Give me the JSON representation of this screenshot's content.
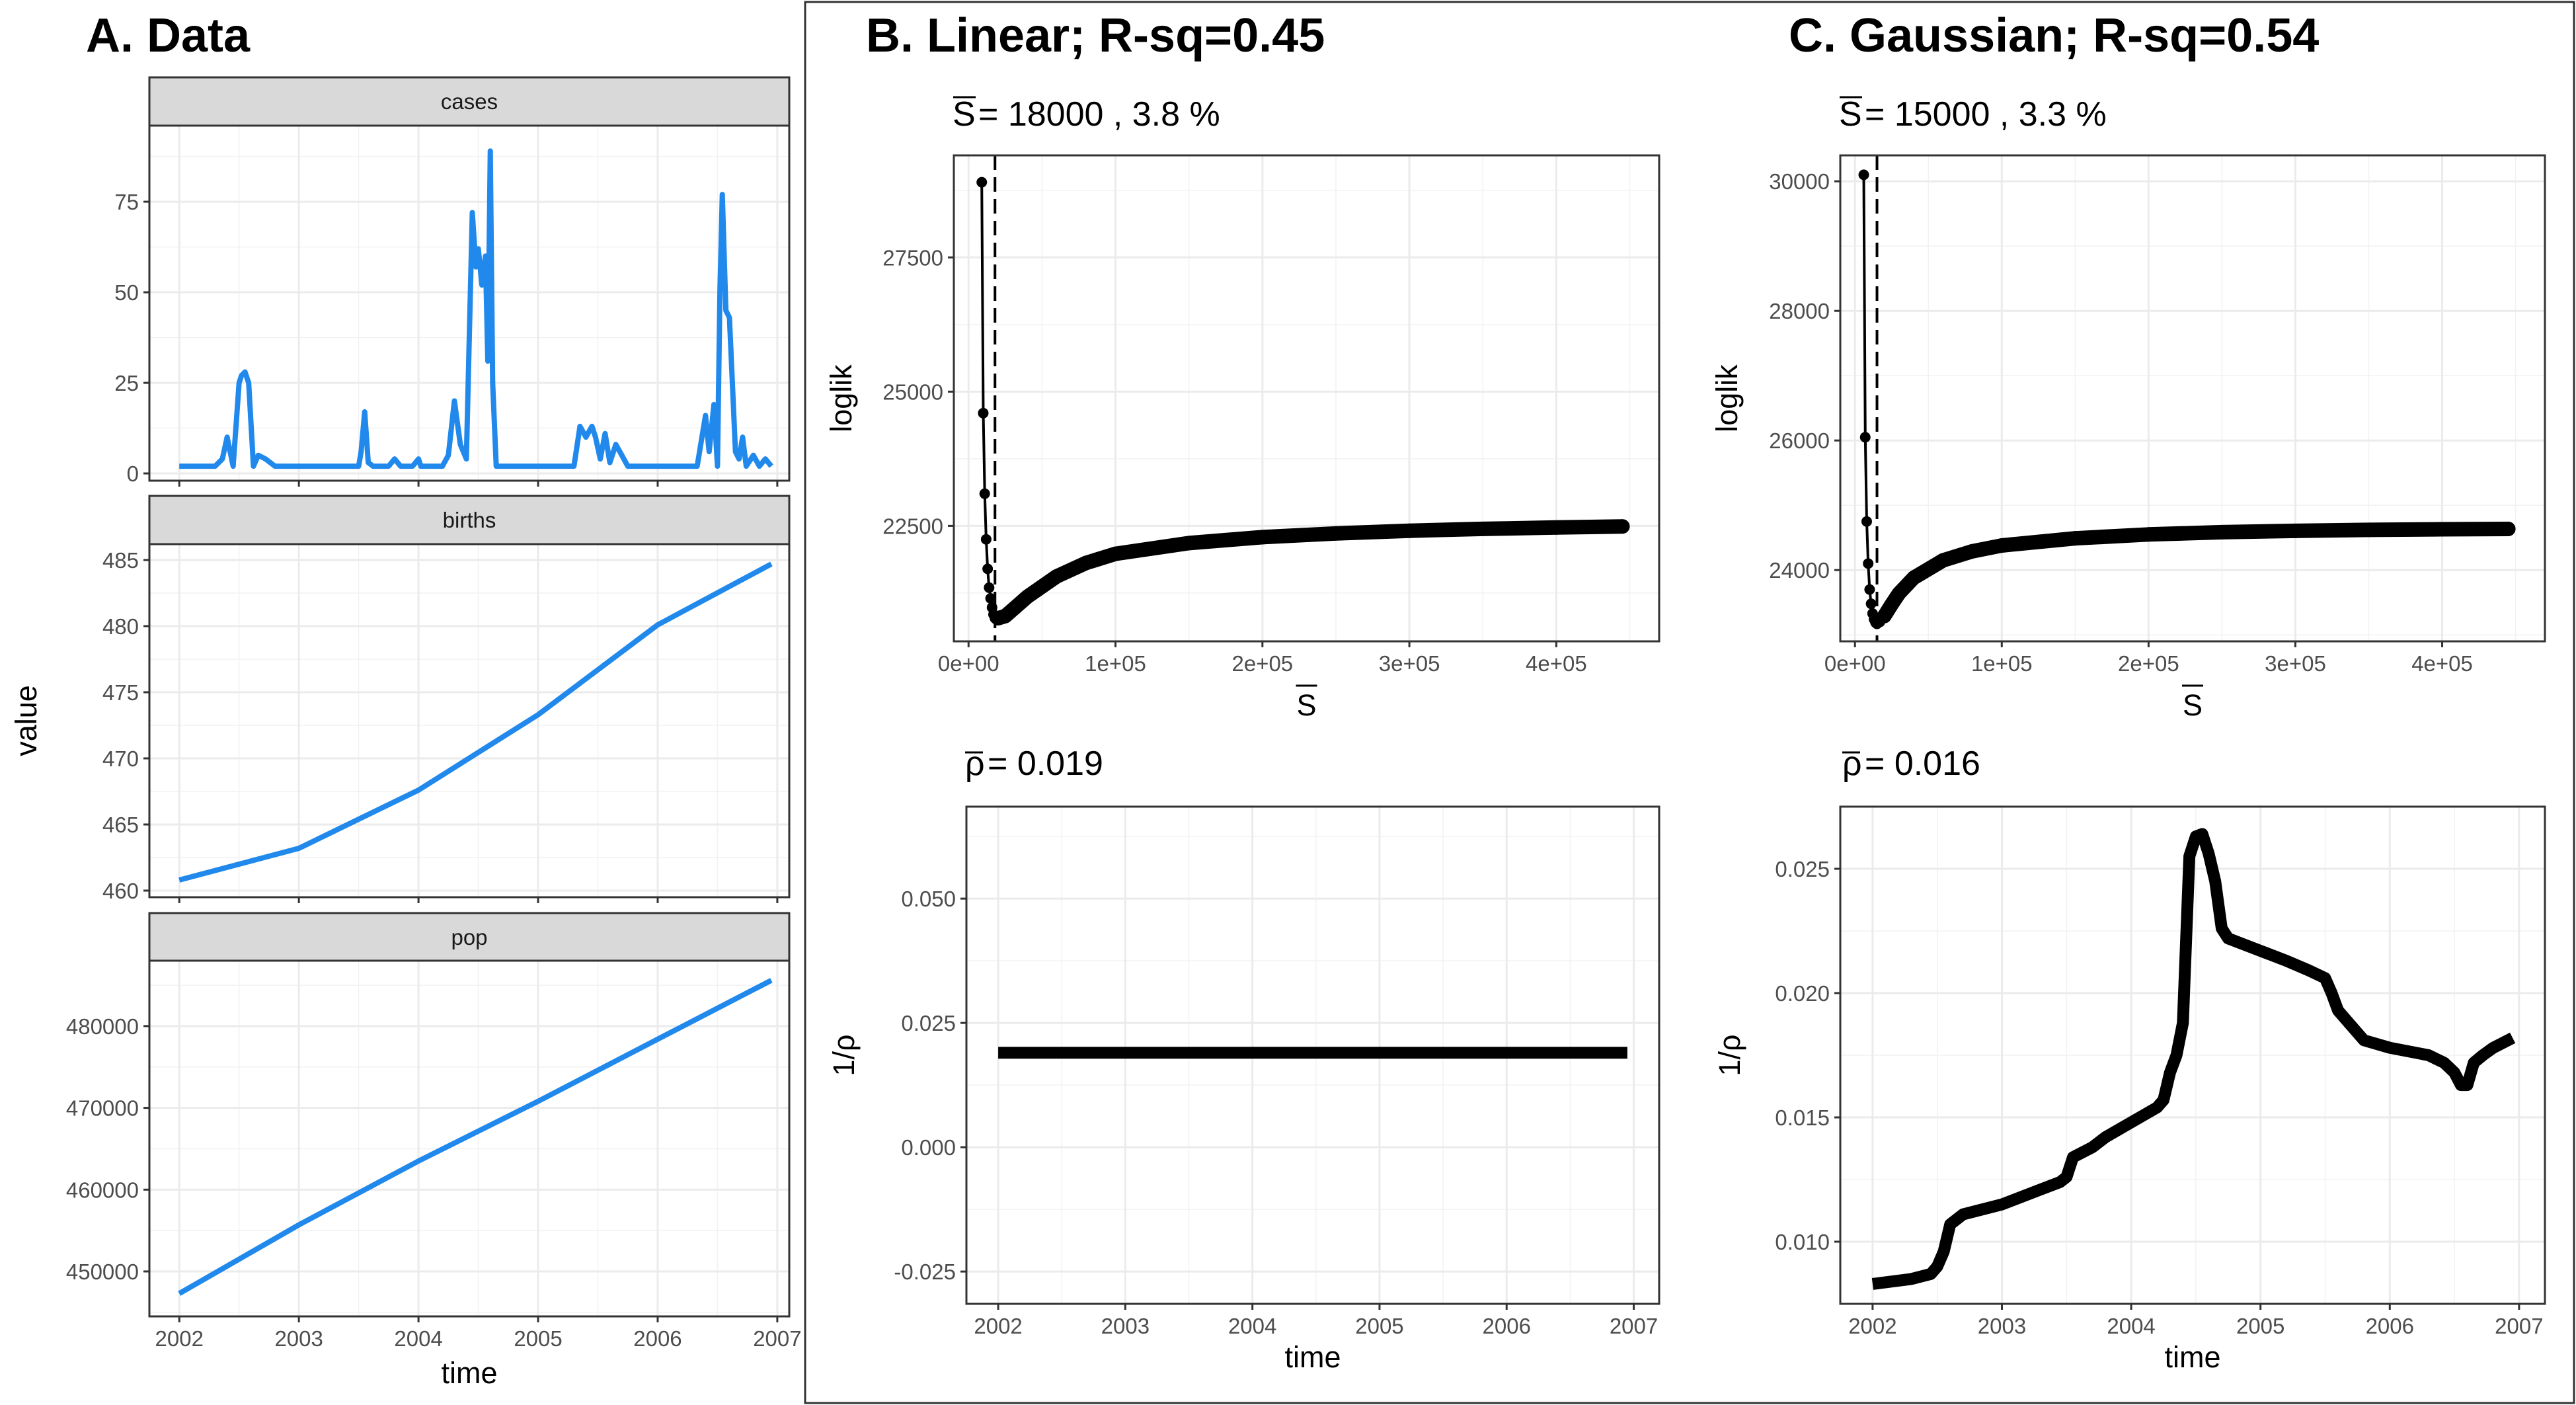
{
  "panels": {
    "a_title": "A. Data",
    "b_title": "B. Linear; R-sq=0.45",
    "c_title": "C. Gaussian; R-sq=0.54",
    "b_sbar": "= 18000 , 3.8 %",
    "c_sbar": "= 15000 , 3.3 %",
    "b_rho": "= 0.019",
    "c_rho": "= 0.016",
    "s_symbol": "S",
    "rho_symbol": "ρ"
  },
  "chart_data": [
    {
      "type": "line",
      "title": "A. Data",
      "ylabel": "value",
      "xlabel": "time",
      "x_ticks": [
        "2002",
        "2003",
        "2004",
        "2005",
        "2006",
        "2007"
      ],
      "xlim": [
        2001.75,
        2007.1
      ],
      "grid": true,
      "color": "#2189ec",
      "facets": [
        {
          "name": "cases",
          "ylim": [
            -2,
            96
          ],
          "y_ticks": [
            0,
            25,
            50,
            75
          ],
          "x": [
            2002.0,
            2002.3,
            2002.36,
            2002.4,
            2002.45,
            2002.5,
            2002.52,
            2002.55,
            2002.58,
            2002.62,
            2002.66,
            2002.72,
            2002.8,
            2003.5,
            2003.52,
            2003.55,
            2003.58,
            2003.62,
            2003.75,
            2003.8,
            2003.85,
            2003.95,
            2004.0,
            2004.02,
            2004.05,
            2004.2,
            2004.25,
            2004.3,
            2004.35,
            2004.4,
            2004.45,
            2004.48,
            2004.5,
            2004.53,
            2004.56,
            2004.58,
            2004.6,
            2004.62,
            2004.65,
            2004.7,
            2004.72,
            2005.3,
            2005.35,
            2005.4,
            2005.45,
            2005.48,
            2005.52,
            2005.56,
            2005.6,
            2005.65,
            2005.7,
            2005.75,
            2005.8,
            2006.3,
            2006.33,
            2006.36,
            2006.4,
            2006.43,
            2006.47,
            2006.5,
            2006.52,
            2006.54,
            2006.57,
            2006.6,
            2006.65,
            2006.68,
            2006.71,
            2006.74,
            2006.8,
            2006.85,
            2006.9,
            2006.95
          ],
          "y": [
            2,
            2,
            4,
            10,
            2,
            25,
            27,
            28,
            25,
            2,
            5,
            4,
            2,
            2,
            6,
            17,
            3,
            2,
            2,
            4,
            2,
            2,
            4,
            2,
            2,
            2,
            5,
            20,
            8,
            4,
            72,
            57,
            62,
            52,
            60,
            31,
            89,
            25,
            2,
            2,
            2,
            2,
            13,
            10,
            13,
            10,
            4,
            11,
            3,
            8,
            5,
            2,
            2,
            2,
            2,
            8,
            16,
            6,
            19,
            2,
            50,
            77,
            45,
            43,
            6,
            4,
            10,
            2,
            5,
            2,
            4,
            2
          ]
        },
        {
          "name": "births",
          "ylim": [
            459.5,
            486.2
          ],
          "y_ticks": [
            460,
            465,
            470,
            475,
            480,
            485
          ],
          "x": [
            2002.0,
            2003.0,
            2004.0,
            2005.0,
            2006.0,
            2006.95
          ],
          "y": [
            460.8,
            463.2,
            467.6,
            473.3,
            480.1,
            484.7
          ]
        },
        {
          "name": "pop",
          "ylim": [
            444500,
            488000
          ],
          "y_ticks": [
            450000,
            460000,
            470000,
            480000
          ],
          "x": [
            2002.0,
            2003.0,
            2004.0,
            2005.0,
            2006.0,
            2006.95
          ],
          "y": [
            447300,
            455700,
            463500,
            470800,
            478400,
            485600
          ]
        }
      ]
    },
    {
      "type": "scatter",
      "title": "B. Linear; R-sq=0.45",
      "subtitle": "= 18000 , 3.8 %",
      "xlabel": "S",
      "ylabel": "loglik",
      "xlim": [
        -10000,
        470000
      ],
      "ylim": [
        20350,
        29400
      ],
      "x_ticks": [
        0,
        100000,
        200000,
        300000,
        400000
      ],
      "x_tick_labels": [
        "0e+00",
        "1e+05",
        "2e+05",
        "3e+05",
        "4e+05"
      ],
      "y_ticks": [
        22500,
        25000,
        27500
      ],
      "y_tick_labels": [
        "22500",
        "25000",
        "27500"
      ],
      "vline": 18000,
      "x": [
        9000,
        10000,
        11000,
        12000,
        13000,
        14000,
        15000,
        16000,
        17000,
        18000,
        20000,
        25000,
        30000,
        40000,
        60000,
        80000,
        100000,
        150000,
        200000,
        250000,
        300000,
        350000,
        400000,
        445000
      ],
      "y": [
        28900,
        24600,
        23100,
        22250,
        21700,
        21350,
        21150,
        20980,
        20850,
        20780,
        20780,
        20820,
        20940,
        21180,
        21560,
        21810,
        21980,
        22180,
        22290,
        22360,
        22410,
        22445,
        22470,
        22490
      ]
    },
    {
      "type": "scatter",
      "title": "C. Gaussian; R-sq=0.54",
      "subtitle": "= 15000 , 3.3 %",
      "xlabel": "S",
      "ylabel": "loglik",
      "xlim": [
        -10000,
        470000
      ],
      "ylim": [
        22900,
        30400
      ],
      "x_ticks": [
        0,
        100000,
        200000,
        300000,
        400000
      ],
      "x_tick_labels": [
        "0e+00",
        "1e+05",
        "2e+05",
        "3e+05",
        "4e+05"
      ],
      "y_ticks": [
        24000,
        26000,
        28000,
        30000
      ],
      "y_tick_labels": [
        "24000",
        "26000",
        "28000",
        "30000"
      ],
      "vline": 15000,
      "x": [
        6000,
        7000,
        8000,
        9000,
        10000,
        11000,
        12000,
        13000,
        14000,
        15000,
        17000,
        20000,
        25000,
        30000,
        40000,
        60000,
        80000,
        100000,
        150000,
        200000,
        250000,
        300000,
        350000,
        400000,
        445000
      ],
      "y": [
        30100,
        26050,
        24750,
        24100,
        23700,
        23480,
        23330,
        23240,
        23190,
        23170,
        23200,
        23290,
        23470,
        23640,
        23880,
        24150,
        24290,
        24380,
        24490,
        24550,
        24585,
        24605,
        24620,
        24630,
        24635
      ]
    },
    {
      "type": "line",
      "subtitle": "= 0.019",
      "xlabel": "time",
      "ylabel": "1/ρ",
      "xlim": [
        2001.75,
        2007.2
      ],
      "ylim": [
        -0.0315,
        0.0685
      ],
      "x_ticks": [
        2002,
        2003,
        2004,
        2005,
        2006,
        2007
      ],
      "x_tick_labels": [
        "2002",
        "2003",
        "2004",
        "2005",
        "2006",
        "2007"
      ],
      "y_ticks": [
        -0.025,
        0.0,
        0.025,
        0.05
      ],
      "y_tick_labels": [
        "-0.025",
        "0.000",
        "0.025",
        "0.050"
      ],
      "x": [
        2002.0,
        2006.95
      ],
      "y": [
        0.019,
        0.019
      ]
    },
    {
      "type": "line",
      "subtitle": "= 0.016",
      "xlabel": "time",
      "ylabel": "1/ρ",
      "xlim": [
        2001.75,
        2007.2
      ],
      "ylim": [
        0.0075,
        0.0275
      ],
      "x_ticks": [
        2002,
        2003,
        2004,
        2005,
        2006,
        2007
      ],
      "x_tick_labels": [
        "2002",
        "2003",
        "2004",
        "2005",
        "2006",
        "2007"
      ],
      "y_ticks": [
        0.01,
        0.015,
        0.02,
        0.025
      ],
      "y_tick_labels": [
        "0.010",
        "0.015",
        "0.020",
        "0.025"
      ],
      "x": [
        2002.0,
        2002.3,
        2002.45,
        2002.5,
        2002.55,
        2002.6,
        2002.7,
        2003.0,
        2003.3,
        2003.45,
        2003.5,
        2003.55,
        2003.7,
        2003.8,
        2004.0,
        2004.2,
        2004.25,
        2004.3,
        2004.35,
        2004.4,
        2004.45,
        2004.5,
        2004.55,
        2004.6,
        2004.65,
        2004.7,
        2004.75,
        2005.0,
        2005.2,
        2005.38,
        2005.5,
        2005.55,
        2005.6,
        2005.7,
        2005.8,
        2006.0,
        2006.2,
        2006.3,
        2006.42,
        2006.5,
        2006.55,
        2006.6,
        2006.65,
        2006.72,
        2006.8,
        2006.95
      ],
      "y": [
        0.0083,
        0.0085,
        0.0087,
        0.009,
        0.0096,
        0.0107,
        0.0111,
        0.0115,
        0.0121,
        0.0124,
        0.0126,
        0.0134,
        0.0138,
        0.0142,
        0.0148,
        0.0154,
        0.0157,
        0.0168,
        0.0175,
        0.0188,
        0.0255,
        0.0263,
        0.0264,
        0.0256,
        0.0245,
        0.0226,
        0.0222,
        0.0217,
        0.0213,
        0.0209,
        0.0206,
        0.02,
        0.0193,
        0.0187,
        0.0181,
        0.0178,
        0.0176,
        0.0175,
        0.0172,
        0.0168,
        0.0163,
        0.0163,
        0.0172,
        0.0175,
        0.0178,
        0.0182
      ]
    }
  ]
}
